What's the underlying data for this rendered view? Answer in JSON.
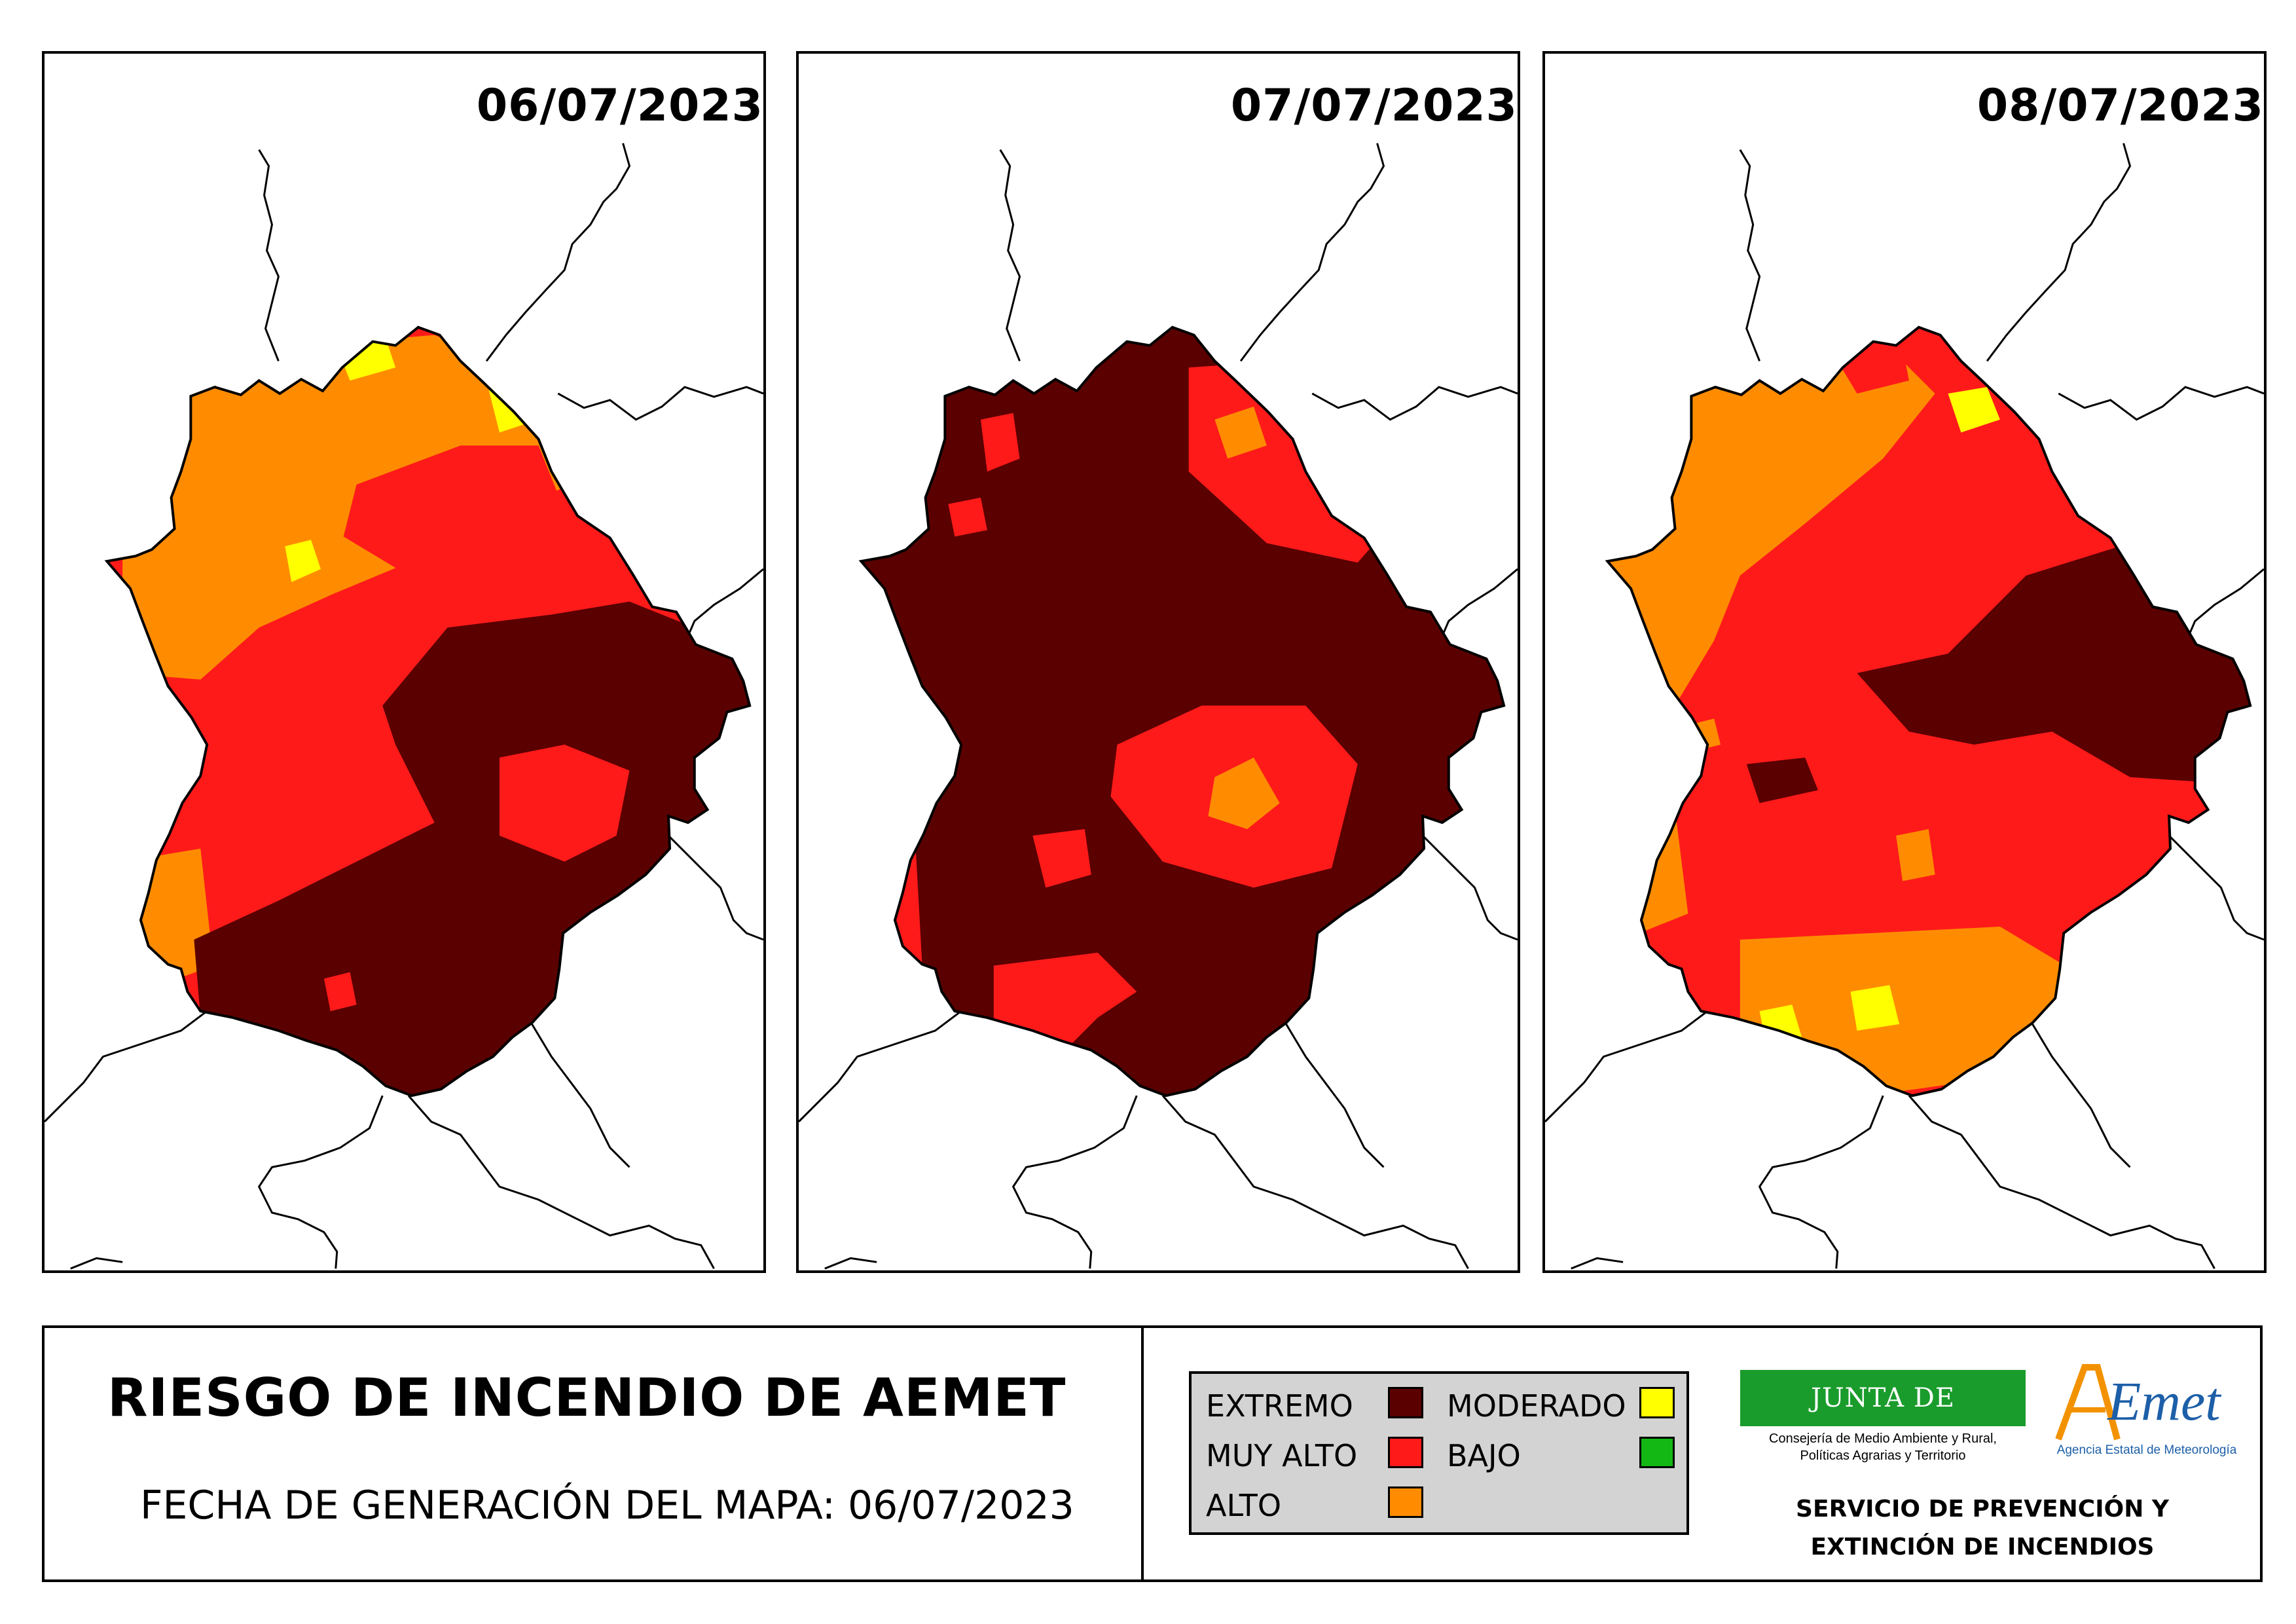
{
  "maps": [
    {
      "date": "06/07/2023",
      "dominant_risk": "EXTREMO"
    },
    {
      "date": "07/07/2023",
      "dominant_risk": "EXTREMO"
    },
    {
      "date": "08/07/2023",
      "dominant_risk": "MUY ALTO"
    }
  ],
  "footer": {
    "title": "RIESGO DE INCENDIO DE AEMET",
    "generation_date_text": "FECHA DE GENERACIÓN DEL MAPA: 06/07/2023"
  },
  "legend": {
    "items": [
      {
        "label": "EXTREMO",
        "color": "#5a0000"
      },
      {
        "label": "MUY ALTO",
        "color": "#ff1a1a"
      },
      {
        "label": "ALTO",
        "color": "#ff8c00"
      },
      {
        "label": "MODERADO",
        "color": "#ffff00"
      },
      {
        "label": "BAJO",
        "color": "#14b814"
      }
    ]
  },
  "logos": {
    "junta_name": "JUNTA DE EXTREMADURA",
    "junta_sub_line1": "Consejería de Medio Ambiente y Rural,",
    "junta_sub_line2": "Políticas Agrarias y Territorio",
    "aemet_name": "AEMet",
    "aemet_sub": "Agencia Estatal de Meteorología"
  },
  "service": {
    "line1": "SERVICIO DE PREVENCIÓN Y",
    "line2": "EXTINCIÓN DE INCENDIOS"
  }
}
